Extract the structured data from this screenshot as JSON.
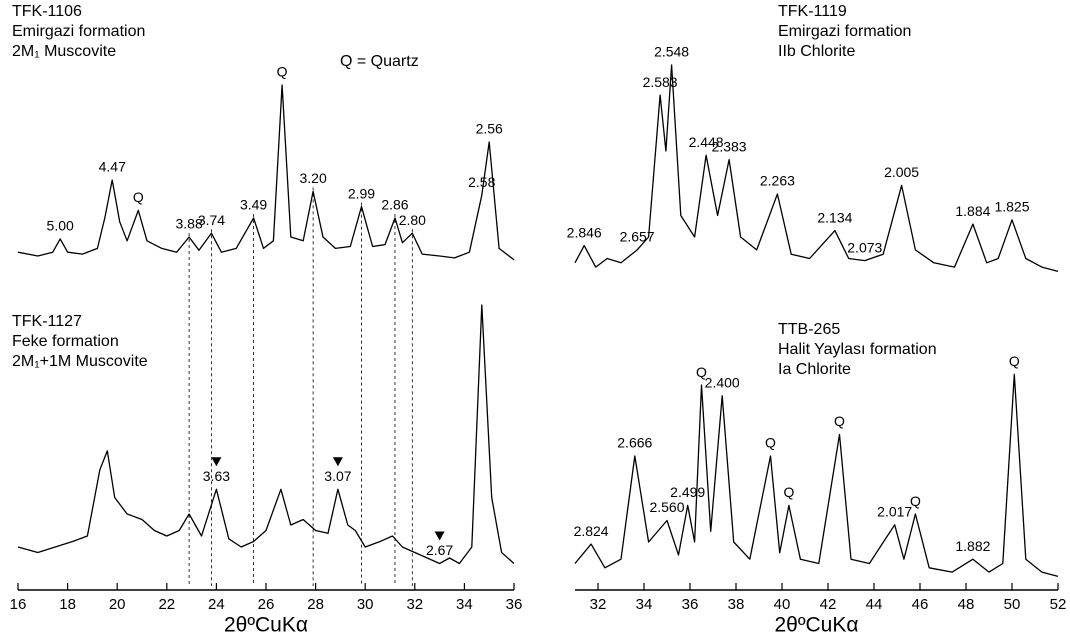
{
  "chart_data": [
    {
      "type": "line",
      "title": "TFK-1106",
      "subtitle": [
        "Emirgazi formation",
        "2M₁ Muscovite"
      ],
      "note": "Q = Quartz",
      "color": "#000000",
      "xlim": [
        16,
        36
      ],
      "ylim": [
        0,
        100
      ],
      "x": [
        16,
        16.8,
        17.4,
        17.7,
        18.0,
        18.6,
        19.2,
        19.5,
        19.8,
        20.1,
        20.4,
        20.85,
        21.2,
        21.8,
        22.4,
        22.9,
        23.3,
        23.8,
        24.2,
        24.8,
        25.5,
        25.9,
        26.3,
        26.65,
        27.0,
        27.5,
        27.9,
        28.3,
        28.8,
        29.4,
        29.85,
        30.3,
        30.8,
        31.2,
        31.5,
        31.9,
        32.3,
        33.0,
        33.6,
        34.2,
        34.7,
        35.0,
        35.4,
        36
      ],
      "values": [
        12,
        10,
        12,
        19,
        12,
        11,
        14,
        30,
        50,
        28,
        18,
        34,
        18,
        14,
        12,
        20,
        13,
        22,
        12,
        14,
        30,
        14,
        18,
        100,
        20,
        18,
        44,
        20,
        14,
        15,
        36,
        15,
        16,
        30,
        17,
        22,
        11,
        10,
        9,
        12,
        42,
        70,
        14,
        8
      ],
      "annotations": [
        {
          "x": 17.7,
          "text": "5.00"
        },
        {
          "x": 19.8,
          "text": "4.47"
        },
        {
          "x": 20.85,
          "text": "Q"
        },
        {
          "x": 22.9,
          "text": "3.88"
        },
        {
          "x": 23.8,
          "text": "3.74"
        },
        {
          "x": 25.5,
          "text": "3.49"
        },
        {
          "x": 26.65,
          "text": "Q"
        },
        {
          "x": 27.9,
          "text": "3.20"
        },
        {
          "x": 29.85,
          "text": "2.99"
        },
        {
          "x": 31.2,
          "text": "2.86"
        },
        {
          "x": 31.9,
          "text": "2.80"
        },
        {
          "x": 34.7,
          "text": "2.58"
        },
        {
          "x": 35.0,
          "text": "2.56"
        }
      ]
    },
    {
      "type": "line",
      "title": "TFK-1119",
      "subtitle": [
        "Emirgazi formation",
        "IIb Chlorite"
      ],
      "color": "#000000",
      "xlim": [
        31,
        52
      ],
      "ylim": [
        0,
        100
      ],
      "x": [
        31.0,
        31.4,
        31.9,
        32.4,
        33.0,
        33.7,
        34.2,
        34.7,
        34.95,
        35.2,
        35.6,
        36.2,
        36.7,
        37.2,
        37.7,
        38.2,
        38.9,
        39.8,
        40.4,
        41.2,
        42.3,
        42.9,
        43.6,
        44.4,
        45.2,
        45.8,
        46.6,
        47.5,
        48.3,
        48.9,
        49.4,
        50.0,
        50.6,
        51.3,
        52
      ],
      "values": [
        8,
        16,
        6,
        10,
        8,
        14,
        20,
        86,
        60,
        100,
        30,
        20,
        58,
        30,
        56,
        20,
        14,
        40,
        12,
        10,
        23,
        10,
        9,
        12,
        44,
        14,
        8,
        6,
        26,
        8,
        10,
        28,
        10,
        6,
        4
      ],
      "annotations": [
        {
          "x": 31.4,
          "text": "2.846"
        },
        {
          "x": 33.7,
          "text": "2.657"
        },
        {
          "x": 34.7,
          "text": "2.583"
        },
        {
          "x": 35.2,
          "text": "2.548"
        },
        {
          "x": 36.7,
          "text": "2.448"
        },
        {
          "x": 37.7,
          "text": "2.383"
        },
        {
          "x": 39.8,
          "text": "2.263"
        },
        {
          "x": 42.3,
          "text": "2.134"
        },
        {
          "x": 43.6,
          "text": "2.073"
        },
        {
          "x": 45.2,
          "text": "2.005"
        },
        {
          "x": 48.3,
          "text": "1.884"
        },
        {
          "x": 50.0,
          "text": "1.825"
        }
      ]
    },
    {
      "type": "line",
      "title": "TFK-1127",
      "subtitle": [
        "Feke formation",
        "2M₁+1M Muscovite"
      ],
      "color": "#000000",
      "xlim": [
        16,
        36
      ],
      "ylim": [
        0,
        100
      ],
      "xticks": [
        16,
        18,
        20,
        22,
        24,
        26,
        28,
        30,
        32,
        34,
        36
      ],
      "xlabel": "2θºCuKα",
      "x": [
        16,
        16.8,
        17.5,
        18.2,
        18.8,
        19.3,
        19.6,
        19.9,
        20.4,
        21.0,
        21.5,
        22.0,
        22.5,
        22.9,
        23.4,
        24.0,
        24.5,
        25.0,
        25.5,
        26.0,
        26.6,
        27.0,
        27.5,
        28.0,
        28.5,
        28.9,
        29.3,
        29.6,
        30.0,
        30.6,
        31.1,
        31.5,
        32.0,
        32.5,
        33.0,
        33.4,
        33.8,
        34.3,
        34.7,
        35.1,
        35.5,
        36
      ],
      "values": [
        12,
        10,
        12,
        14,
        16,
        40,
        47,
        30,
        24,
        22,
        18,
        16,
        18,
        24,
        16,
        33,
        15,
        12,
        14,
        18,
        33,
        20,
        22,
        18,
        17,
        33,
        20,
        18,
        12,
        14,
        16,
        12,
        10,
        8,
        6,
        8,
        6,
        12,
        100,
        30,
        10,
        6
      ],
      "annotations": [
        {
          "x": 24.0,
          "text": "3.63"
        },
        {
          "x": 28.9,
          "text": "3.07"
        },
        {
          "x": 33.0,
          "text": "2.67"
        }
      ]
    },
    {
      "type": "line",
      "title": "TTB-265",
      "subtitle": [
        "Halit Yaylası formation",
        "Ia Chlorite"
      ],
      "color": "#000000",
      "xlim": [
        31,
        52
      ],
      "ylim": [
        0,
        100
      ],
      "xticks": [
        32,
        34,
        36,
        38,
        40,
        42,
        44,
        46,
        48,
        50,
        52
      ],
      "xlabel": "2θºCuKα",
      "x": [
        31.0,
        31.7,
        32.3,
        33.0,
        33.6,
        34.2,
        35.0,
        35.5,
        35.9,
        36.2,
        36.5,
        36.9,
        37.4,
        37.9,
        38.6,
        39.5,
        39.9,
        40.3,
        40.8,
        41.6,
        42.5,
        43.0,
        43.8,
        44.9,
        45.3,
        45.8,
        46.4,
        47.4,
        48.3,
        49.0,
        49.6,
        50.1,
        50.6,
        51.3,
        52
      ],
      "values": [
        10,
        19,
        8,
        12,
        60,
        20,
        30,
        14,
        37,
        20,
        93,
        25,
        88,
        20,
        12,
        60,
        15,
        37,
        12,
        10,
        70,
        12,
        10,
        28,
        12,
        33,
        8,
        6,
        12,
        6,
        10,
        98,
        12,
        6,
        4
      ],
      "annotations": [
        {
          "x": 31.7,
          "text": "2.824"
        },
        {
          "x": 33.6,
          "text": "2.666"
        },
        {
          "x": 35.0,
          "text": "2.560"
        },
        {
          "x": 35.9,
          "text": "2.499"
        },
        {
          "x": 36.5,
          "text": "Q"
        },
        {
          "x": 37.4,
          "text": "2.400"
        },
        {
          "x": 39.5,
          "text": "Q"
        },
        {
          "x": 40.3,
          "text": "Q"
        },
        {
          "x": 42.5,
          "text": "Q"
        },
        {
          "x": 44.9,
          "text": "2.017"
        },
        {
          "x": 45.8,
          "text": "Q"
        },
        {
          "x": 48.3,
          "text": "1.882"
        },
        {
          "x": 50.1,
          "text": "Q"
        }
      ]
    }
  ]
}
